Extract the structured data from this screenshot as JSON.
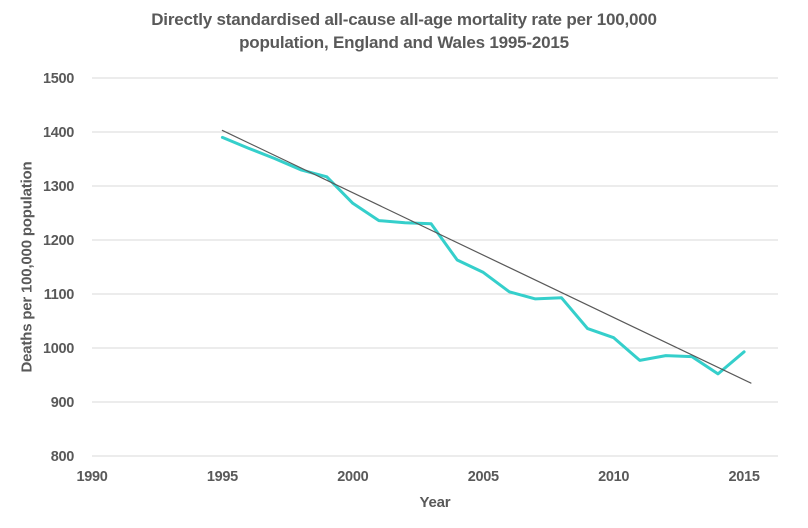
{
  "chart_data": {
    "type": "line",
    "title_lines": [
      "Directly standardised all-cause all-age mortality rate per 100,000",
      "population, England and Wales 1995-2015"
    ],
    "xlabel": "Year",
    "ylabel": "Deaths per 100,000 population",
    "xlim": [
      1990,
      2016.3
    ],
    "ylim": [
      800,
      1500
    ],
    "xticks": [
      1990,
      1995,
      2000,
      2005,
      2010,
      2015
    ],
    "yticks": [
      800,
      900,
      1000,
      1100,
      1200,
      1300,
      1400,
      1500
    ],
    "grid": "horizontal",
    "legend_position": "none",
    "series": [
      {
        "name": "mortality-rate",
        "color": "#35cfcb",
        "stroke_width": 3,
        "x": [
          1995,
          1996,
          1997,
          1998,
          1999,
          2000,
          2001,
          2002,
          2003,
          2004,
          2005,
          2006,
          2007,
          2008,
          2009,
          2010,
          2011,
          2012,
          2013,
          2014,
          2015
        ],
        "values": [
          1390,
          1370,
          1351,
          1330,
          1317,
          1268,
          1236,
          1232,
          1230,
          1163,
          1140,
          1104,
          1091,
          1093,
          1036,
          1019,
          977,
          986,
          984,
          952,
          993
        ]
      },
      {
        "name": "linear-trend",
        "color": "#595959",
        "stroke_width": 1.2,
        "x": [
          1995,
          2015.26
        ],
        "values": [
          1403,
          935
        ]
      }
    ],
    "colors": {
      "background": "#ffffff",
      "gridline": "#d9d9d9",
      "text": "#595959",
      "accent_line": "#35cfcb",
      "trend_line": "#595959"
    }
  }
}
